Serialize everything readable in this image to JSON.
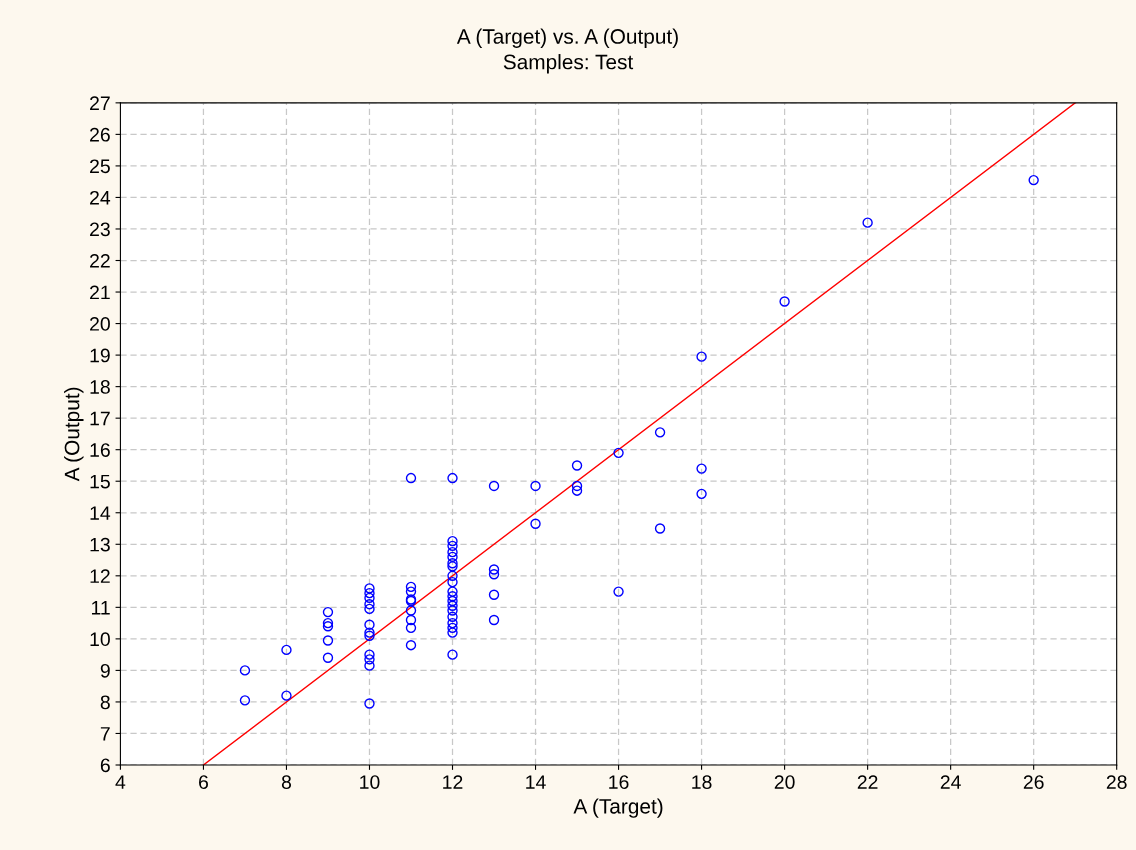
{
  "chart_data": {
    "type": "scatter",
    "title": "A (Target) vs. A (Output)",
    "subtitle": "Samples: Test",
    "xlabel": "A (Target)",
    "ylabel": "A (Output)",
    "xlim": [
      4,
      28
    ],
    "ylim": [
      6,
      27
    ],
    "xticks": [
      4,
      6,
      8,
      10,
      12,
      14,
      16,
      18,
      20,
      22,
      24,
      26,
      28
    ],
    "yticks": [
      6,
      7,
      8,
      9,
      10,
      11,
      12,
      13,
      14,
      15,
      16,
      17,
      18,
      19,
      20,
      21,
      22,
      23,
      24,
      25,
      26,
      27
    ],
    "grid": true,
    "series": [
      {
        "marker": "circle",
        "color": "#0000ff",
        "x": [
          7,
          7,
          8,
          8,
          9,
          9,
          9,
          9,
          9,
          10,
          10,
          10,
          10,
          10,
          10,
          10,
          10,
          10,
          10,
          10,
          10,
          11,
          11,
          11,
          11,
          11,
          11,
          11,
          11,
          11,
          12,
          12,
          12,
          12,
          12,
          12,
          12,
          12,
          12,
          12,
          12,
          12,
          12,
          12,
          12,
          12,
          12,
          12,
          12,
          13,
          13,
          13,
          13,
          13,
          14,
          14,
          15,
          15,
          15,
          16,
          16,
          17,
          17,
          18,
          18,
          18,
          20,
          22,
          26
        ],
        "values": [
          8.05,
          9.0,
          8.2,
          9.65,
          10.85,
          10.5,
          10.4,
          9.95,
          9.4,
          11.6,
          11.45,
          11.3,
          11.1,
          10.95,
          10.45,
          10.2,
          10.1,
          9.5,
          9.35,
          9.15,
          7.95,
          15.1,
          11.65,
          11.5,
          11.25,
          11.2,
          10.9,
          10.6,
          10.35,
          9.8,
          15.1,
          13.1,
          12.95,
          12.75,
          12.6,
          12.4,
          12.3,
          12.0,
          11.8,
          11.5,
          11.35,
          11.2,
          11.05,
          10.9,
          10.7,
          10.5,
          10.35,
          10.2,
          9.5,
          14.85,
          12.2,
          12.05,
          11.4,
          10.6,
          14.85,
          13.65,
          15.5,
          14.85,
          14.7,
          15.9,
          11.5,
          16.55,
          13.5,
          18.95,
          15.4,
          14.6,
          20.7,
          23.2,
          24.55
        ]
      },
      {
        "type": "line",
        "marker": "none",
        "color": "#ff0000",
        "x": [
          6,
          27
        ],
        "values": [
          6,
          27
        ]
      }
    ]
  }
}
